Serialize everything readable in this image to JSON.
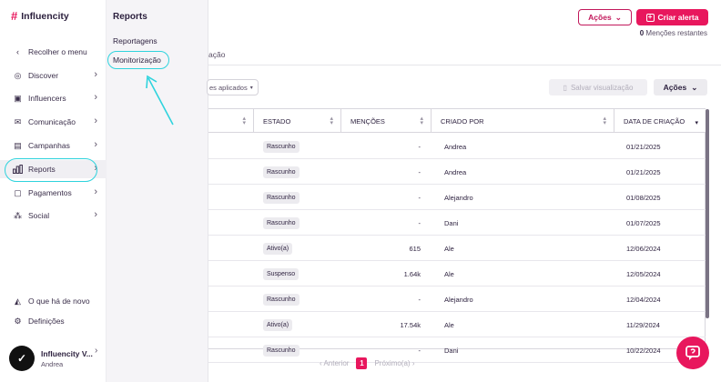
{
  "brand": {
    "name": "Influencity",
    "accent": "#e8175d",
    "highlight": "#2fd3dd"
  },
  "sidebar": {
    "collapse_label": "Recolher o menu",
    "items": [
      {
        "label": "Discover",
        "icon": "compass-icon"
      },
      {
        "label": "Influencers",
        "icon": "contact-card-icon"
      },
      {
        "label": "Comunicação",
        "icon": "mail-icon"
      },
      {
        "label": "Campanhas",
        "icon": "calendar-icon"
      },
      {
        "label": "Reports",
        "icon": "bar-chart-icon",
        "active": true
      },
      {
        "label": "Pagamentos",
        "icon": "wallet-icon"
      },
      {
        "label": "Social",
        "icon": "network-icon"
      }
    ],
    "whats_new": "O que há de novo",
    "settings": "Definições",
    "user": {
      "name": "Influencity V...",
      "sub": "Andrea"
    }
  },
  "flyout": {
    "title": "Reports",
    "items": [
      "Reportagens",
      "Monitorização"
    ]
  },
  "header": {
    "acoes_label": "Ações",
    "criar_label": "Criar alerta",
    "mencoes_count": "0",
    "mencoes_label": "Menções restantes"
  },
  "tabs": {
    "fragment": "ação"
  },
  "toolbar": {
    "filter_label": "es aplicados",
    "save_view_label": "Salvar visualização",
    "acoes_label": "Ações"
  },
  "table": {
    "headers": [
      "ESTADO",
      "MENÇÕES",
      "CRIADO POR",
      "DATA DE CRIAÇÃO"
    ],
    "rows": [
      {
        "estado": "Rascunho",
        "mencoes": "-",
        "criado": "Andrea",
        "data": "01/21/2025"
      },
      {
        "estado": "Rascunho",
        "mencoes": "-",
        "criado": "Andrea",
        "data": "01/21/2025"
      },
      {
        "estado": "Rascunho",
        "mencoes": "-",
        "criado": "Alejandro",
        "data": "01/08/2025"
      },
      {
        "estado": "Rascunho",
        "mencoes": "-",
        "criado": "Dani",
        "data": "01/07/2025"
      },
      {
        "estado": "Ativo(a)",
        "mencoes": "615",
        "criado": "Ale",
        "data": "12/06/2024"
      },
      {
        "estado": "Suspenso",
        "mencoes": "1.64k",
        "criado": "Ale",
        "data": "12/05/2024"
      },
      {
        "estado": "Rascunho",
        "mencoes": "-",
        "criado": "Alejandro",
        "data": "12/04/2024"
      },
      {
        "estado": "Ativo(a)",
        "mencoes": "17.54k",
        "criado": "Ale",
        "data": "11/29/2024"
      },
      {
        "estado": "Rascunho",
        "mencoes": "-",
        "criado": "Dani",
        "data": "10/22/2024"
      }
    ]
  },
  "pagination": {
    "prev": "Anterior",
    "page": "1",
    "next": "Próximo(a)"
  }
}
